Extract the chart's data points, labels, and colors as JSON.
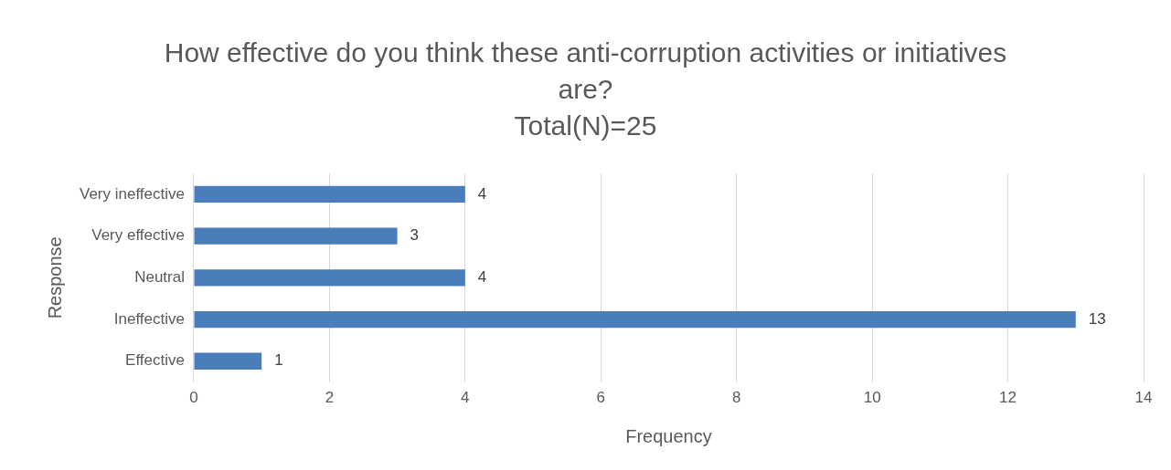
{
  "chart_data": {
    "type": "bar",
    "orientation": "horizontal",
    "title": "How effective do you think these anti-corruption activities or initiatives are?",
    "subtitle": "Total(N)=25",
    "xlabel": "Frequency",
    "ylabel": "Response",
    "categories": [
      "Very ineffective",
      "Very effective",
      "Neutral",
      "Ineffective",
      "Effective"
    ],
    "values": [
      4,
      3,
      4,
      13,
      1
    ],
    "color": "#4a7ebb",
    "xlim": [
      0,
      14
    ],
    "xticks": [
      0,
      2,
      4,
      6,
      8,
      10,
      12,
      14
    ],
    "grid": "x",
    "data_labels": true,
    "legend": false
  }
}
